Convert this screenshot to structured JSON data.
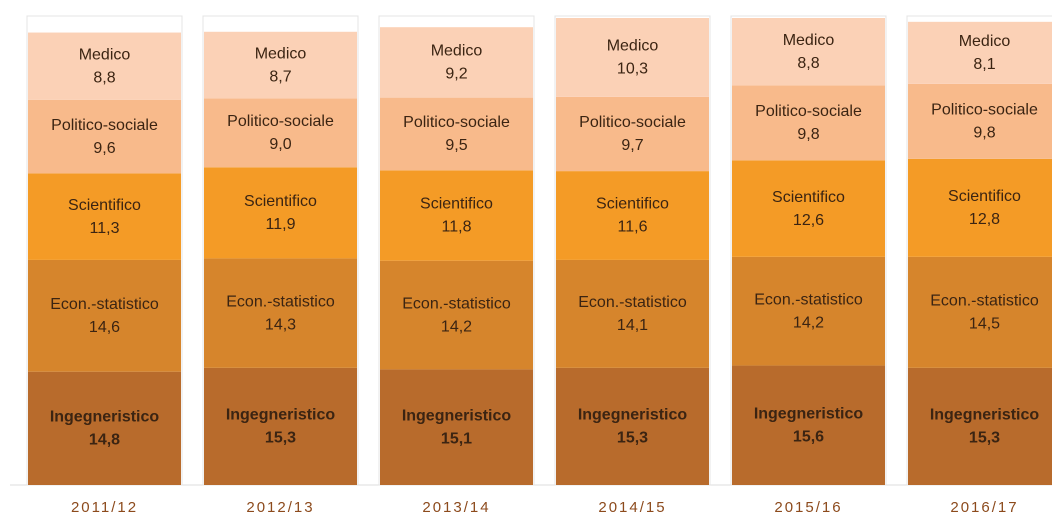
{
  "chart_data": {
    "type": "stacked_bar",
    "categories": [
      "2011/12",
      "2012/13",
      "2013/14",
      "2014/15",
      "2015/16",
      "2016/17"
    ],
    "series": [
      {
        "name": "Ingegneristico",
        "color": "#b86b2c",
        "values": [
          14.8,
          15.3,
          15.1,
          15.3,
          15.6,
          15.3
        ],
        "value_labels": [
          "14,8",
          "15,3",
          "15,1",
          "15,3",
          "15,6",
          "15,3"
        ]
      },
      {
        "name": "Econ.-statistico",
        "color": "#d6852c",
        "values": [
          14.6,
          14.3,
          14.2,
          14.1,
          14.2,
          14.5
        ],
        "value_labels": [
          "14,6",
          "14,3",
          "14,2",
          "14,1",
          "14,2",
          "14,5"
        ]
      },
      {
        "name": "Scientifico",
        "color": "#f49b26",
        "values": [
          11.3,
          11.9,
          11.8,
          11.6,
          12.6,
          12.8
        ],
        "value_labels": [
          "11,3",
          "11,9",
          "11,8",
          "11,6",
          "12,6",
          "12,8"
        ]
      },
      {
        "name": "Politico-sociale",
        "color": "#f8ba8b",
        "values": [
          9.6,
          9.0,
          9.5,
          9.7,
          9.8,
          9.8
        ],
        "value_labels": [
          "9,6",
          "9,0",
          "9,5",
          "9,7",
          "9,8",
          "9,8"
        ]
      },
      {
        "name": "Medico",
        "color": "#fbd1b6",
        "values": [
          8.8,
          8.7,
          9.2,
          10.3,
          8.8,
          8.1
        ],
        "value_labels": [
          "8,8",
          "8,7",
          "9,2",
          "10,3",
          "8,8",
          "8,1"
        ]
      }
    ]
  }
}
